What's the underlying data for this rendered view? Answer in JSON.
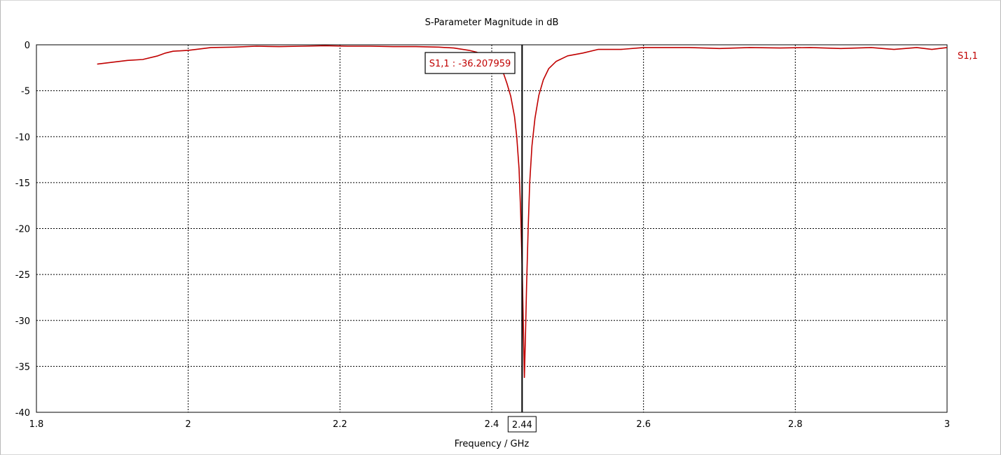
{
  "chart_data": {
    "type": "line",
    "title": "S-Parameter Magnitude in dB",
    "xlabel": "Frequency / GHz",
    "ylabel": "",
    "xlim": [
      1.8,
      3.0
    ],
    "ylim": [
      -40,
      0
    ],
    "x_ticks": [
      1.8,
      2.0,
      2.2,
      2.4,
      2.6,
      2.8,
      3.0
    ],
    "x_tick_labels": [
      "1.8",
      "2",
      "2.2",
      "2.4",
      "2.6",
      "2.8",
      "3"
    ],
    "y_ticks": [
      0,
      -5,
      -10,
      -15,
      -20,
      -25,
      -30,
      -35,
      -40
    ],
    "y_tick_labels": [
      "0",
      "-5",
      "-10",
      "-15",
      "-20",
      "-25",
      "-30",
      "-35",
      "-40"
    ],
    "grid": true,
    "legend_position": "right",
    "series": [
      {
        "name": "S1,1",
        "color": "#c00000",
        "points": [
          [
            1.88,
            -2.1
          ],
          [
            1.9,
            -1.9
          ],
          [
            1.92,
            -1.7
          ],
          [
            1.94,
            -1.6
          ],
          [
            1.96,
            -1.2
          ],
          [
            1.97,
            -0.9
          ],
          [
            1.98,
            -0.7
          ],
          [
            2.0,
            -0.6
          ],
          [
            2.02,
            -0.4
          ],
          [
            2.03,
            -0.3
          ],
          [
            2.06,
            -0.25
          ],
          [
            2.09,
            -0.15
          ],
          [
            2.12,
            -0.2
          ],
          [
            2.15,
            -0.15
          ],
          [
            2.18,
            -0.1
          ],
          [
            2.21,
            -0.15
          ],
          [
            2.24,
            -0.15
          ],
          [
            2.27,
            -0.2
          ],
          [
            2.3,
            -0.2
          ],
          [
            2.33,
            -0.25
          ],
          [
            2.35,
            -0.35
          ],
          [
            2.37,
            -0.6
          ],
          [
            2.38,
            -0.8
          ],
          [
            2.39,
            -1.2
          ],
          [
            2.4,
            -1.6
          ],
          [
            2.41,
            -2.3
          ],
          [
            2.415,
            -3.0
          ],
          [
            2.42,
            -4.2
          ],
          [
            2.425,
            -5.6
          ],
          [
            2.43,
            -7.8
          ],
          [
            2.433,
            -10.0
          ],
          [
            2.436,
            -13.5
          ],
          [
            2.438,
            -18.0
          ],
          [
            2.44,
            -24.0
          ],
          [
            2.4415,
            -30.0
          ],
          [
            2.443,
            -36.207959
          ],
          [
            2.4445,
            -31.5
          ],
          [
            2.446,
            -26.0
          ],
          [
            2.448,
            -20.0
          ],
          [
            2.45,
            -15.0
          ],
          [
            2.453,
            -11.0
          ],
          [
            2.457,
            -8.0
          ],
          [
            2.462,
            -5.5
          ],
          [
            2.468,
            -3.8
          ],
          [
            2.475,
            -2.6
          ],
          [
            2.485,
            -1.8
          ],
          [
            2.5,
            -1.2
          ],
          [
            2.52,
            -0.9
          ],
          [
            2.54,
            -0.5
          ],
          [
            2.57,
            -0.5
          ],
          [
            2.6,
            -0.3
          ],
          [
            2.63,
            -0.3
          ],
          [
            2.66,
            -0.3
          ],
          [
            2.7,
            -0.4
          ],
          [
            2.74,
            -0.3
          ],
          [
            2.78,
            -0.35
          ],
          [
            2.82,
            -0.3
          ],
          [
            2.86,
            -0.4
          ],
          [
            2.9,
            -0.3
          ],
          [
            2.93,
            -0.5
          ],
          [
            2.96,
            -0.3
          ],
          [
            2.98,
            -0.5
          ],
          [
            3.0,
            -0.3
          ]
        ]
      }
    ],
    "marker": {
      "x": 2.44,
      "x_label": "2.44",
      "label": "S1,1 : -36.207959"
    }
  }
}
